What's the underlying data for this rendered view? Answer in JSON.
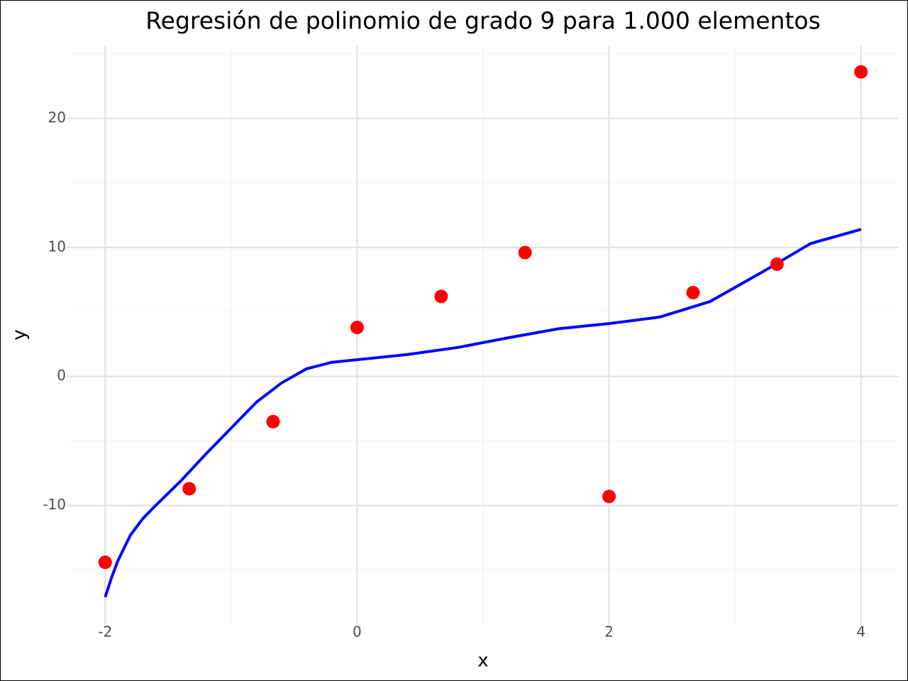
{
  "chart_data": {
    "type": "scatter",
    "title": "Regresión de polinomio de grado 9 para 1.000 elementos",
    "x_label": "x",
    "y_label": "y",
    "xlim": [
      -2.3,
      4.3
    ],
    "ylim": [
      -19.2,
      25.6
    ],
    "xticks": [
      -2,
      0,
      2,
      4
    ],
    "yticks": [
      -10,
      0,
      10,
      20
    ],
    "grid": true,
    "points": {
      "color": "#ff0000",
      "x": [
        -2,
        -1.333,
        -0.667,
        0,
        0.667,
        1.333,
        2,
        2.667,
        3.333,
        4
      ],
      "y": [
        -14.4,
        -8.7,
        -3.5,
        3.8,
        6.2,
        9.6,
        -9.3,
        6.5,
        8.7,
        23.6
      ]
    },
    "curve": {
      "color": "#0000ff",
      "x": [
        -2,
        -1.95,
        -1.9,
        -1.8,
        -1.7,
        -1.6,
        -1.4,
        -1.2,
        -1.0,
        -0.8,
        -0.6,
        -0.4,
        -0.2,
        0,
        0.4,
        0.8,
        1.2,
        1.6,
        2.0,
        2.4,
        2.8,
        3.2,
        3.6,
        4.0
      ],
      "y": [
        -17.1,
        -15.6,
        -14.3,
        -12.3,
        -11.0,
        -10.0,
        -8.1,
        -6.0,
        -4.0,
        -2.0,
        -0.5,
        0.6,
        1.1,
        1.3,
        1.7,
        2.25,
        3.0,
        3.7,
        4.1,
        4.6,
        5.8,
        8.0,
        10.3,
        11.4
      ]
    }
  }
}
